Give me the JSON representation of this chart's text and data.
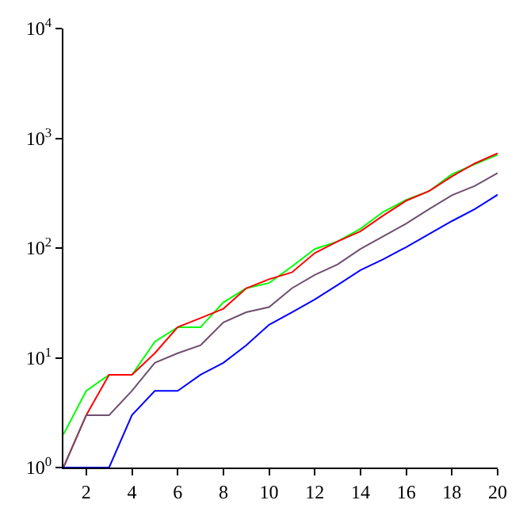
{
  "chart_data": {
    "type": "line",
    "log": "y",
    "grid": false,
    "marker": "none",
    "line_style": "solid",
    "x": [
      1,
      2,
      3,
      4,
      5,
      6,
      7,
      8,
      9,
      10,
      11,
      12,
      13,
      14,
      15,
      16,
      17,
      18,
      19,
      20
    ],
    "xlim": [
      1,
      20
    ],
    "xticks": [
      2,
      4,
      6,
      8,
      10,
      12,
      14,
      16,
      18,
      20
    ],
    "ylim": [
      1,
      10000
    ],
    "yticks": [
      {
        "value": 1,
        "label": "10$^{0}$"
      },
      {
        "value": 10,
        "label": "10$^{1}$"
      },
      {
        "value": 100,
        "label": "10$^{2}$"
      },
      {
        "value": 1000,
        "label": "10$^{3}$"
      },
      {
        "value": 10000,
        "label": "10$^{4}$"
      }
    ],
    "series": [
      {
        "color": "#00ff00",
        "values": [
          2,
          5,
          7,
          7,
          14,
          19,
          19,
          32,
          43,
          48,
          68,
          98,
          115,
          150,
          214,
          275,
          330,
          470,
          580,
          710
        ]
      },
      {
        "color": "#ff0000",
        "values": [
          1,
          3,
          7,
          7,
          11,
          19,
          23,
          28,
          43,
          52,
          60,
          90,
          115,
          142,
          198,
          270,
          330,
          450,
          590,
          730
        ]
      },
      {
        "color": "#6f4f6f",
        "values": [
          1,
          3,
          3,
          5,
          9,
          11,
          13,
          21,
          26,
          29,
          43,
          57,
          71,
          98,
          128,
          167,
          226,
          303,
          368,
          483
        ]
      },
      {
        "color": "#0000ff",
        "values": [
          1,
          1,
          1,
          3,
          5,
          5,
          7,
          9,
          13,
          20,
          26,
          34,
          46,
          63,
          79,
          102,
          134,
          176,
          226,
          306
        ]
      }
    ]
  }
}
